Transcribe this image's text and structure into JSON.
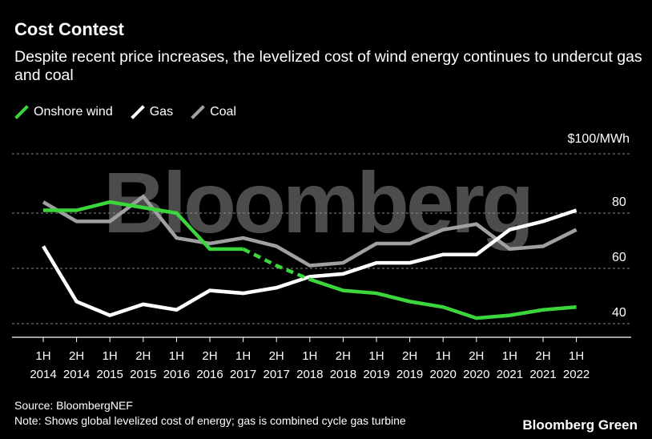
{
  "title": "Cost Contest",
  "subtitle": "Despite recent price increases, the levelized cost of wind energy continues to undercut gas and coal",
  "legend": [
    {
      "name": "Onshore wind",
      "color": "#3bd63b"
    },
    {
      "name": "Gas",
      "color": "#ffffff"
    },
    {
      "name": "Coal",
      "color": "#a0a0a0"
    }
  ],
  "watermark": "Bloomberg",
  "footer": {
    "source": "Source: BloombergNEF",
    "note": "Note: Shows global levelized cost of energy; gas is combined cycle gas turbine"
  },
  "brand": "Bloomberg Green",
  "chart_data": {
    "type": "line",
    "title": "Cost Contest",
    "unit_label": "$100/MWh",
    "xlabel": "",
    "ylabel": "",
    "ylim": [
      35,
      100
    ],
    "yticks": [
      40,
      60,
      80
    ],
    "grid": true,
    "legend_position": "top-left",
    "x_top": [
      "1H",
      "2H",
      "1H",
      "2H",
      "1H",
      "2H",
      "1H",
      "2H",
      "1H",
      "2H",
      "1H",
      "2H",
      "1H",
      "2H",
      "1H",
      "2H",
      "1H"
    ],
    "x_bottom": [
      "2014",
      "2014",
      "2015",
      "2015",
      "2016",
      "2016",
      "2017",
      "2017",
      "2018",
      "2018",
      "2019",
      "2019",
      "2020",
      "2020",
      "2021",
      "2021",
      "2022"
    ],
    "series": [
      {
        "name": "Onshore wind",
        "color": "#3bd63b",
        "values": [
          81,
          81,
          84,
          82,
          80,
          67,
          67,
          61,
          56,
          52,
          51,
          48,
          46,
          42,
          43,
          45,
          46
        ],
        "dashed_segments": [
          [
            6,
            8
          ]
        ]
      },
      {
        "name": "Gas",
        "color": "#ffffff",
        "values": [
          68,
          48,
          43,
          47,
          45,
          52,
          51,
          53,
          57,
          58,
          62,
          62,
          65,
          65,
          74,
          77,
          81
        ]
      },
      {
        "name": "Coal",
        "color": "#a0a0a0",
        "values": [
          84,
          77,
          77,
          86,
          71,
          69,
          71,
          68,
          61,
          62,
          69,
          69,
          74,
          76,
          67,
          68,
          74
        ]
      }
    ]
  }
}
